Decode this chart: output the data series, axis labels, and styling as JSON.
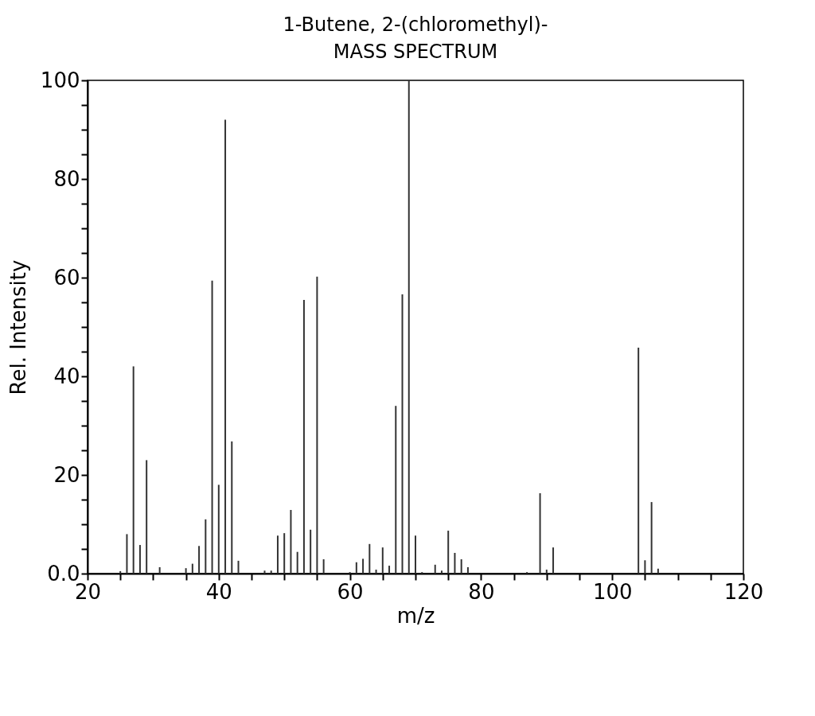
{
  "chart_data": {
    "type": "bar",
    "title": "1-Butene, 2-(chloromethyl)-",
    "subtitle": "MASS SPECTRUM",
    "xlabel": "m/z",
    "ylabel": "Rel. Intensity",
    "x": [
      25,
      26,
      27,
      28,
      29,
      31,
      35,
      36,
      37,
      38,
      39,
      40,
      41,
      42,
      43,
      47,
      48,
      49,
      50,
      51,
      52,
      53,
      54,
      55,
      56,
      60,
      61,
      62,
      63,
      64,
      65,
      66,
      67,
      68,
      69,
      70,
      71,
      73,
      74,
      75,
      76,
      77,
      78,
      87,
      89,
      90,
      91,
      104,
      105,
      106,
      107
    ],
    "values": [
      0.5,
      8,
      42,
      5.8,
      23,
      1.3,
      1.1,
      2,
      5.6,
      11,
      59.4,
      18,
      92,
      26.8,
      2.6,
      0.6,
      0.6,
      7.7,
      8.2,
      12.9,
      4.4,
      55.5,
      8.9,
      60.2,
      2.9,
      0.3,
      2.3,
      3,
      6,
      0.8,
      5.3,
      1.6,
      34,
      56.6,
      100,
      7.7,
      0.3,
      1.8,
      0.6,
      8.7,
      4.2,
      2.9,
      1.3,
      0.3,
      16.3,
      0.8,
      5.3,
      45.8,
      2.7,
      14.5,
      1
    ],
    "color": "#333333",
    "xlim": [
      20,
      120
    ],
    "xticks": [
      20,
      {
        "value": 25,
        "label": null
      },
      {
        "value": 30,
        "label": null
      },
      {
        "value": 35,
        "label": null
      },
      40,
      {
        "value": 45,
        "label": null
      },
      {
        "value": 50,
        "label": null
      },
      {
        "value": 55,
        "label": null
      },
      60,
      {
        "value": 65,
        "label": null
      },
      {
        "value": 70,
        "label": null
      },
      {
        "value": 75,
        "label": null
      },
      80,
      {
        "value": 85,
        "label": null
      },
      {
        "value": 90,
        "label": null
      },
      {
        "value": 95,
        "label": null
      },
      100,
      {
        "value": 105,
        "label": null
      },
      {
        "value": 110,
        "label": null
      },
      {
        "value": 115,
        "label": null
      },
      120
    ],
    "ylim": [
      0,
      100
    ],
    "yticks": [
      {
        "value": 0,
        "label": "0.0"
      },
      {
        "value": 5,
        "label": null
      },
      {
        "value": 10,
        "label": null
      },
      {
        "value": 15,
        "label": null
      },
      20,
      {
        "value": 25,
        "label": null
      },
      {
        "value": 30,
        "label": null
      },
      {
        "value": 35,
        "label": null
      },
      40,
      {
        "value": 45,
        "label": null
      },
      {
        "value": 50,
        "label": null
      },
      {
        "value": 55,
        "label": null
      },
      60,
      {
        "value": 65,
        "label": null
      },
      {
        "value": 70,
        "label": null
      },
      {
        "value": 75,
        "label": null
      },
      80,
      {
        "value": 85,
        "label": null
      },
      {
        "value": 90,
        "label": null
      },
      {
        "value": 95,
        "label": null
      },
      100
    ],
    "grid": false
  }
}
